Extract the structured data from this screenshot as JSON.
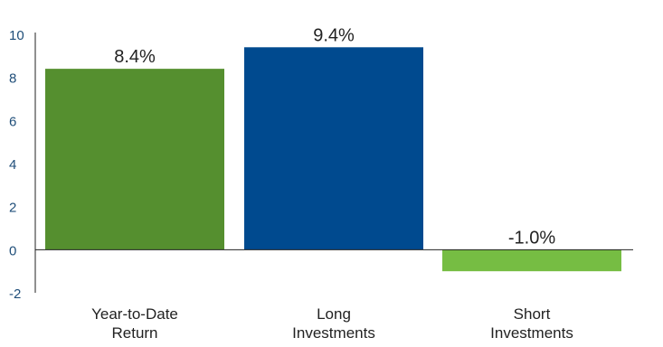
{
  "chart_data": {
    "type": "bar",
    "categories": [
      "Year-to-Date Return",
      "Long Investments",
      "Short Investments"
    ],
    "category_label_lines": [
      [
        "Year-to-Date",
        "Return"
      ],
      [
        "Long",
        "Investments"
      ],
      [
        "Short",
        "Investments"
      ]
    ],
    "values": [
      8.4,
      9.4,
      -1.0
    ],
    "data_labels": [
      "8.4%",
      "9.4%",
      "-1.0%"
    ],
    "bar_colors": [
      "#558f2f",
      "#004a8f",
      "#76bd43"
    ],
    "title": "",
    "xlabel": "",
    "ylabel": "",
    "ylim": [
      -2,
      10
    ],
    "yticks": [
      10,
      8,
      6,
      4,
      2,
      0,
      -2
    ],
    "grid": false,
    "legend": "none",
    "colors": {
      "axis": "#222222",
      "tick_label": "#1f4e79",
      "data_label": "#222222",
      "category_label": "#222222"
    }
  }
}
